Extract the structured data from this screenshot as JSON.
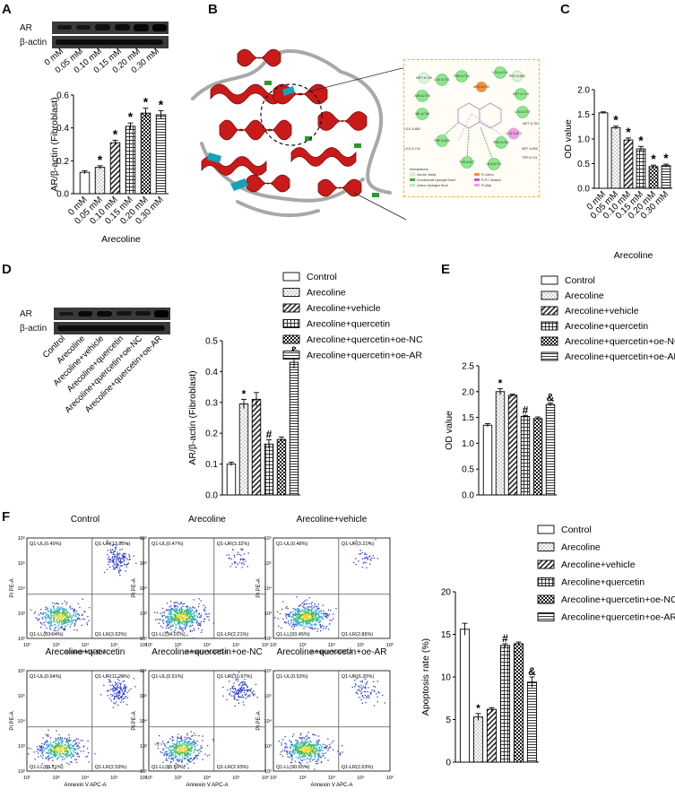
{
  "panels": {
    "a": "A",
    "b": "B",
    "c": "C",
    "d": "D",
    "e": "E",
    "f": "F"
  },
  "blot": {
    "ar": "AR",
    "actin": "β-actin"
  },
  "legend": [
    "Control",
    "Arecoline",
    "Arecoline+vehicle",
    "Arecoline+quercetin",
    "Arecoline+quercetin+oe-NC",
    "Arecoline+quercetin+oe-AR"
  ],
  "doses": [
    "0 mM",
    "0.05 mM",
    "0.10 mM",
    "0.15 mM",
    "0.20 mM",
    "0.30 mM"
  ],
  "d_groups": [
    "Control",
    "Arecoline",
    "Arecoline+vehicle",
    "Arecoline+quercetin",
    "Arecoline+quercetin+oe-NC",
    "Arecoline+quercetin+oe-AR"
  ],
  "docking": {
    "legend_title": "Interactions",
    "legend_items": [
      "Van der Waals",
      "Conventional Hydrogen Bond",
      "Carbon Hydrogen Bond",
      "Pi-Cation",
      "Pi-Pi T-shaped",
      "Pi-Alkyl"
    ],
    "residues": [
      "LEU A:701",
      "PHE A:764",
      "LEU A:704",
      "ASN A:705",
      "MET A:745",
      "VAL A:746",
      "LEU A:707",
      "PHE A:876",
      "THR A:877",
      "GLN A:711",
      "PHE A:764",
      "LEU A:873",
      "ARG A:752",
      "MET A:749",
      "PRO A:682",
      "LEU A:880",
      "MET A:787",
      "MET A:895",
      "LEU A:744",
      "TRP A:741"
    ]
  },
  "chart_data": [
    {
      "id": "A",
      "type": "bar",
      "title": "",
      "categories": [
        "0 mM",
        "0.05 mM",
        "0.10 mM",
        "0.15 mM",
        "0.20 mM",
        "0.30 mM"
      ],
      "values": [
        0.13,
        0.16,
        0.31,
        0.41,
        0.49,
        0.48
      ],
      "errors": [
        0.01,
        0.01,
        0.015,
        0.02,
        0.03,
        0.025
      ],
      "sig": [
        "",
        "*",
        "*",
        "*",
        "*",
        "*"
      ],
      "xlabel": "Arecoline",
      "ylabel": "AR/β-actin (Fibroblast)",
      "ylim": [
        0,
        0.6
      ],
      "yticks": [
        "0.0",
        "0.2",
        "0.4",
        "0.6"
      ]
    },
    {
      "id": "C",
      "type": "bar",
      "title": "",
      "categories": [
        "0 mM",
        "0.05 mM",
        "0.10 mM",
        "0.15 mM",
        "0.20 mM",
        "0.30 mM"
      ],
      "values": [
        1.53,
        1.23,
        0.98,
        0.8,
        0.44,
        0.46
      ],
      "errors": [
        0.02,
        0.03,
        0.04,
        0.05,
        0.03,
        0.03
      ],
      "sig": [
        "",
        "*",
        "*",
        "*",
        "*",
        "*"
      ],
      "xlabel": "Arecoline",
      "ylabel": "OD value",
      "ylim": [
        0,
        2.0
      ],
      "yticks": [
        "0.0",
        "0.5",
        "1.0",
        "1.5",
        "2.0"
      ]
    },
    {
      "id": "D",
      "type": "bar",
      "title": "",
      "categories": [
        "Control",
        "Arecoline",
        "Arecoline+vehicle",
        "Arecoline+quercetin",
        "Arecoline+quercetin+oe-NC",
        "Arecoline+quercetin+oe-AR"
      ],
      "values": [
        0.1,
        0.295,
        0.31,
        0.165,
        0.18,
        0.43
      ],
      "errors": [
        0.006,
        0.015,
        0.022,
        0.014,
        0.008,
        0.02
      ],
      "sig": [
        "",
        "*",
        "",
        "#",
        "",
        "&"
      ],
      "xlabel": "",
      "ylabel": "AR/β-actin (Fibroblast)",
      "ylim": [
        0,
        0.5
      ],
      "yticks": [
        "0.0",
        "0.1",
        "0.2",
        "0.3",
        "0.4",
        "0.5"
      ]
    },
    {
      "id": "E",
      "type": "bar",
      "title": "",
      "categories": [
        "Control",
        "Arecoline",
        "Arecoline+vehicle",
        "Arecoline+quercetin",
        "Arecoline+quercetin+oe-NC",
        "Arecoline+quercetin+oe-AR"
      ],
      "values": [
        1.35,
        2.0,
        1.93,
        1.52,
        1.48,
        1.75
      ],
      "errors": [
        0.03,
        0.06,
        0.02,
        0.02,
        0.03,
        0.03
      ],
      "sig": [
        "",
        "*",
        "",
        "#",
        "",
        "&"
      ],
      "xlabel": "",
      "ylabel": "OD value",
      "ylim": [
        0,
        2.5
      ],
      "yticks": [
        "0.0",
        "0.5",
        "1.0",
        "1.5",
        "2.0",
        "2.5"
      ]
    },
    {
      "id": "F",
      "type": "bar",
      "title": "",
      "categories": [
        "Control",
        "Arecoline",
        "Arecoline+vehicle",
        "Arecoline+quercetin",
        "Arecoline+quercetin+oe-NC",
        "Arecoline+quercetin+oe-AR"
      ],
      "values": [
        15.6,
        5.3,
        6.2,
        13.7,
        13.9,
        9.4
      ],
      "errors": [
        0.7,
        0.4,
        0.2,
        0.2,
        0.2,
        0.6
      ],
      "sig": [
        "",
        "*",
        "",
        "#",
        "",
        "&"
      ],
      "xlabel": "",
      "ylabel": "Apoptosis rate (%)",
      "ylim": [
        0,
        20
      ],
      "yticks": [
        "0",
        "5",
        "10",
        "15",
        "20"
      ]
    }
  ],
  "flow": {
    "xlabel": "Annexin V APC-A",
    "ylabel": "PI PE-A",
    "ticks": [
      "10²",
      "10³",
      "10⁴",
      "10⁵",
      "10⁶"
    ],
    "plots": [
      {
        "title": "Control",
        "ul": "Q1-UL(0.49%)",
        "ur": "Q1-UR(13.85%)",
        "ll": "Q1-LL(83.04%)",
        "lr": "Q1-LR(2.62%)"
      },
      {
        "title": "Arecoline",
        "ul": "Q1-UL(0.47%)",
        "ur": "Q1-UR(3.32%)",
        "ll": "Q1-LL(94.01%)",
        "lr": "Q1-LR(2.21%)"
      },
      {
        "title": "Arecoline+vehicle",
        "ul": "Q1-UL(0.48%)",
        "ur": "Q1-UR(3.21%)",
        "ll": "Q1-LL(93.45%)",
        "lr": "Q1-LR(2.86%)"
      },
      {
        "title": "Arecoline+quercetin",
        "ul": "Q1-UL(0.64%)",
        "ur": "Q1-UR(11.26%)",
        "ll": "Q1-LL(85.51%)",
        "lr": "Q1-LR(2.59%)"
      },
      {
        "title": "Arecoline+quercetin+oe-NC",
        "ul": "Q1-UL(0.51%)",
        "ur": "Q1-UR(10.97%)",
        "ll": "Q1-LL(85.59%)",
        "lr": "Q1-LR(2.93%)"
      },
      {
        "title": "Arecoline+quercetin+oe-AR",
        "ul": "Q1-UL(0.53%)",
        "ur": "Q1-UR(6.20%)",
        "ll": "Q1-LL(90.65%)",
        "lr": "Q1-LR(2.63%)"
      }
    ]
  }
}
